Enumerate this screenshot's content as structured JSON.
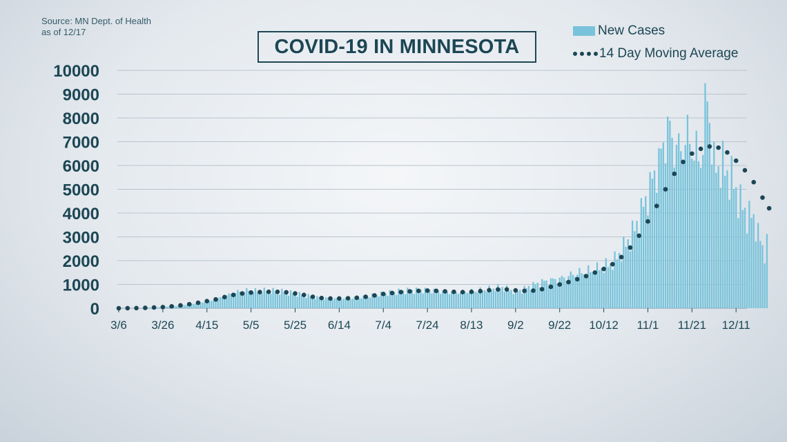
{
  "source": {
    "line1": "Source: MN Dept. of Health",
    "line2": "as of 12/17"
  },
  "title": "COVID-19 IN MINNESOTA",
  "legend": {
    "bars": "New Cases",
    "dots": "14 Day Moving Average"
  },
  "colors": {
    "bars": "#78c3db",
    "dots": "#1c4654",
    "text": "#1c4654",
    "grid": "#b9c3cc"
  },
  "chart_data": {
    "type": "bar",
    "x_axis": "dates 2020, daily",
    "x_start": "3/6",
    "x_end": "12/16",
    "ylim": [
      0,
      10000
    ],
    "y_ticks": [
      0,
      1000,
      2000,
      3000,
      4000,
      5000,
      6000,
      7000,
      8000,
      9000,
      10000
    ],
    "x_tick_labels": [
      "3/6",
      "3/26",
      "4/15",
      "5/5",
      "5/25",
      "6/14",
      "7/4",
      "7/24",
      "8/13",
      "9/2",
      "9/22",
      "10/12",
      "11/1",
      "11/21",
      "12/11"
    ],
    "grid": true,
    "legend_position": "top-right",
    "new_cases": [
      [
        0,
        0
      ],
      [
        3,
        2
      ],
      [
        6,
        5
      ],
      [
        9,
        10
      ],
      [
        12,
        20
      ],
      [
        15,
        30
      ],
      [
        18,
        40
      ],
      [
        21,
        60
      ],
      [
        24,
        80
      ],
      [
        27,
        100
      ],
      [
        30,
        130
      ],
      [
        33,
        170
      ],
      [
        36,
        200
      ],
      [
        39,
        250
      ],
      [
        42,
        300
      ],
      [
        45,
        400
      ],
      [
        48,
        500
      ],
      [
        51,
        600
      ],
      [
        54,
        680
      ],
      [
        57,
        720
      ],
      [
        60,
        760
      ],
      [
        63,
        700
      ],
      [
        66,
        730
      ],
      [
        69,
        720
      ],
      [
        72,
        700
      ],
      [
        75,
        680
      ],
      [
        78,
        640
      ],
      [
        81,
        600
      ],
      [
        84,
        560
      ],
      [
        87,
        500
      ],
      [
        90,
        460
      ],
      [
        93,
        430
      ],
      [
        96,
        410
      ],
      [
        99,
        400
      ],
      [
        102,
        400
      ],
      [
        105,
        410
      ],
      [
        108,
        430
      ],
      [
        111,
        460
      ],
      [
        114,
        500
      ],
      [
        117,
        560
      ],
      [
        120,
        600
      ],
      [
        123,
        640
      ],
      [
        126,
        680
      ],
      [
        129,
        720
      ],
      [
        132,
        740
      ],
      [
        135,
        750
      ],
      [
        138,
        760
      ],
      [
        141,
        760
      ],
      [
        144,
        740
      ],
      [
        147,
        700
      ],
      [
        150,
        680
      ],
      [
        153,
        670
      ],
      [
        156,
        680
      ],
      [
        159,
        700
      ],
      [
        162,
        720
      ],
      [
        165,
        760
      ],
      [
        168,
        800
      ],
      [
        171,
        840
      ],
      [
        174,
        880
      ],
      [
        177,
        760
      ],
      [
        180,
        720
      ],
      [
        183,
        760
      ],
      [
        186,
        900
      ],
      [
        189,
        1000
      ],
      [
        192,
        1100
      ],
      [
        195,
        1150
      ],
      [
        198,
        1200
      ],
      [
        201,
        1250
      ],
      [
        204,
        1350
      ],
      [
        207,
        1450
      ],
      [
        210,
        1500
      ],
      [
        213,
        1550
      ],
      [
        216,
        1600
      ],
      [
        219,
        1700
      ],
      [
        222,
        1800
      ],
      [
        225,
        2000
      ],
      [
        228,
        2400
      ],
      [
        231,
        2800
      ],
      [
        234,
        3300
      ],
      [
        237,
        4000
      ],
      [
        240,
        4800
      ],
      [
        243,
        5600
      ],
      [
        246,
        6400
      ],
      [
        249,
        7600
      ],
      [
        252,
        6800
      ],
      [
        255,
        6600
      ],
      [
        258,
        7200
      ],
      [
        261,
        6600
      ],
      [
        264,
        6200
      ],
      [
        267,
        9000
      ],
      [
        270,
        5900
      ],
      [
        273,
        6000
      ],
      [
        276,
        5700
      ],
      [
        279,
        5200
      ],
      [
        282,
        4400
      ],
      [
        285,
        3900
      ],
      [
        288,
        3800
      ],
      [
        291,
        2800
      ],
      [
        293,
        2300
      ],
      [
        294,
        2800
      ]
    ],
    "moving_average_14day": [
      [
        0,
        0
      ],
      [
        4,
        2
      ],
      [
        8,
        5
      ],
      [
        12,
        15
      ],
      [
        16,
        30
      ],
      [
        20,
        50
      ],
      [
        24,
        80
      ],
      [
        28,
        120
      ],
      [
        32,
        170
      ],
      [
        36,
        230
      ],
      [
        40,
        300
      ],
      [
        44,
        370
      ],
      [
        48,
        470
      ],
      [
        52,
        560
      ],
      [
        56,
        620
      ],
      [
        60,
        660
      ],
      [
        64,
        680
      ],
      [
        68,
        690
      ],
      [
        72,
        690
      ],
      [
        76,
        670
      ],
      [
        80,
        620
      ],
      [
        84,
        560
      ],
      [
        88,
        480
      ],
      [
        92,
        430
      ],
      [
        96,
        410
      ],
      [
        100,
        410
      ],
      [
        104,
        420
      ],
      [
        108,
        440
      ],
      [
        112,
        480
      ],
      [
        116,
        540
      ],
      [
        120,
        600
      ],
      [
        124,
        640
      ],
      [
        128,
        680
      ],
      [
        132,
        710
      ],
      [
        136,
        730
      ],
      [
        140,
        740
      ],
      [
        144,
        730
      ],
      [
        148,
        710
      ],
      [
        152,
        690
      ],
      [
        156,
        680
      ],
      [
        160,
        690
      ],
      [
        164,
        720
      ],
      [
        168,
        760
      ],
      [
        172,
        790
      ],
      [
        176,
        790
      ],
      [
        180,
        750
      ],
      [
        184,
        730
      ],
      [
        188,
        740
      ],
      [
        192,
        800
      ],
      [
        196,
        900
      ],
      [
        200,
        1000
      ],
      [
        204,
        1100
      ],
      [
        208,
        1220
      ],
      [
        212,
        1350
      ],
      [
        216,
        1500
      ],
      [
        220,
        1650
      ],
      [
        224,
        1850
      ],
      [
        228,
        2150
      ],
      [
        232,
        2550
      ],
      [
        236,
        3050
      ],
      [
        240,
        3650
      ],
      [
        244,
        4300
      ],
      [
        248,
        5000
      ],
      [
        252,
        5650
      ],
      [
        256,
        6150
      ],
      [
        260,
        6500
      ],
      [
        264,
        6700
      ],
      [
        268,
        6800
      ],
      [
        272,
        6750
      ],
      [
        276,
        6550
      ],
      [
        280,
        6200
      ],
      [
        284,
        5800
      ],
      [
        288,
        5300
      ],
      [
        292,
        4650
      ],
      [
        295,
        4200
      ]
    ]
  }
}
